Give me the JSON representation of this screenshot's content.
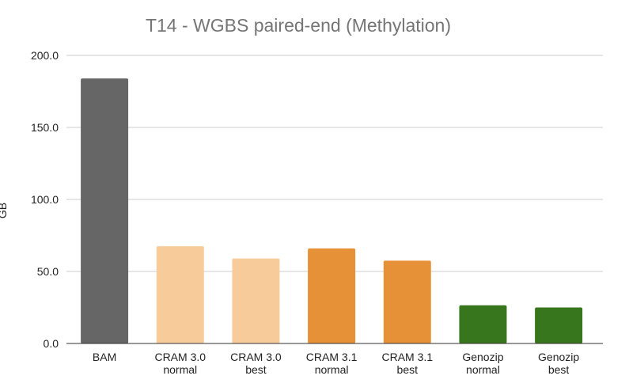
{
  "chart_data": {
    "type": "bar",
    "title": "T14 - WGBS paired-end (Methylation)",
    "xlabel": "",
    "ylabel": "GB",
    "ylim": [
      0,
      200
    ],
    "yticks": [
      "0.0",
      "50.0",
      "100.0",
      "150.0",
      "200.0"
    ],
    "ytick_values": [
      0,
      50,
      100,
      150,
      200
    ],
    "grid": true,
    "legend": "none",
    "categories": [
      [
        "BAM"
      ],
      [
        "CRAM 3.0",
        "normal"
      ],
      [
        "CRAM 3.0",
        "best"
      ],
      [
        "CRAM 3.1",
        "normal"
      ],
      [
        "CRAM 3.1",
        "best"
      ],
      [
        "Genozip",
        "normal"
      ],
      [
        "Genozip",
        "best"
      ]
    ],
    "values": [
      184,
      67.5,
      59,
      66,
      57.5,
      26.5,
      25
    ],
    "colors": [
      "#666666",
      "#f8cb9b",
      "#f8cb9b",
      "#e69138",
      "#e69138",
      "#38761d",
      "#38761d"
    ]
  }
}
